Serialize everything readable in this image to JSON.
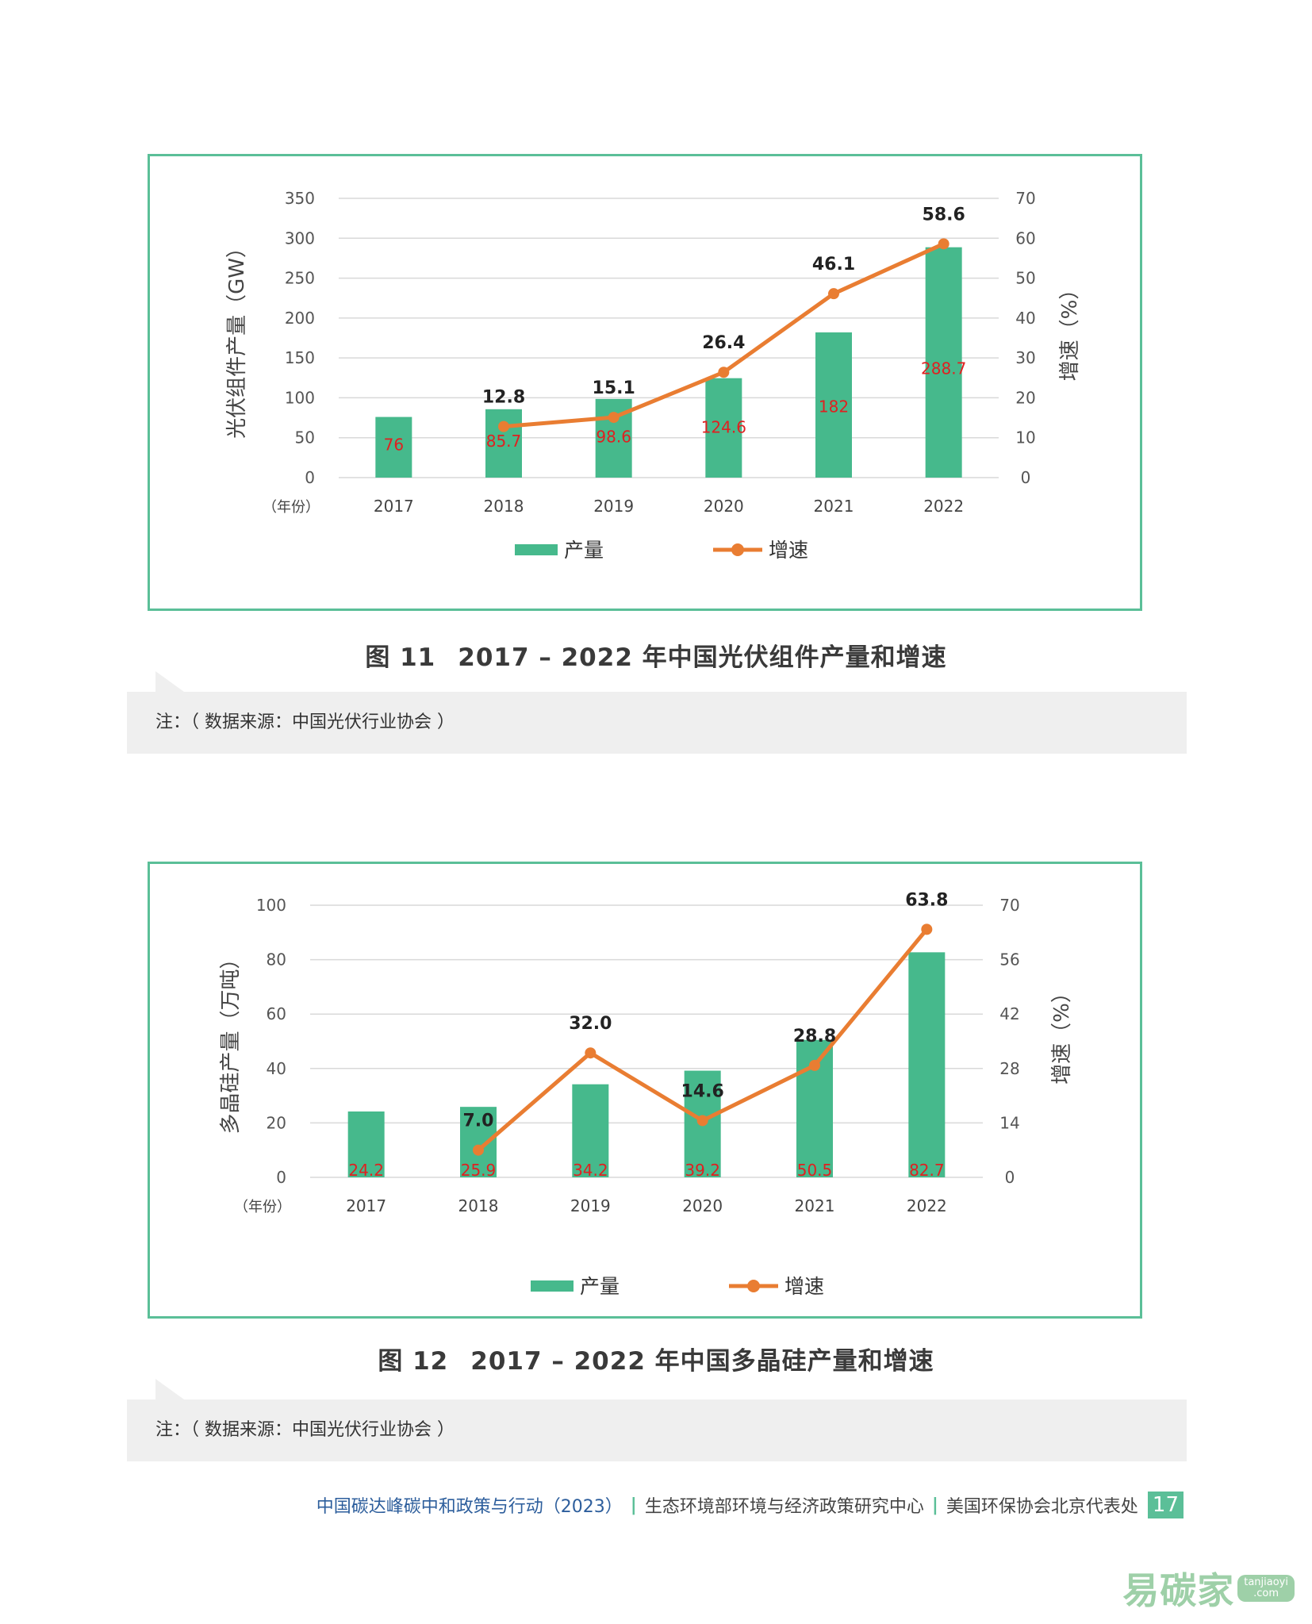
{
  "chart_data": [
    {
      "type": "bar",
      "categories": [
        "2017",
        "2018",
        "2019",
        "2020",
        "2021",
        "2022"
      ],
      "x_unit": "（年份）",
      "ylabel": "光伏组件产量（GW）",
      "y2label": "增速（%）",
      "ylim": [
        0,
        350
      ],
      "y2lim": [
        0,
        70
      ],
      "yticks": [
        0,
        50,
        100,
        150,
        200,
        250,
        300,
        350
      ],
      "y2ticks": [
        0,
        10,
        20,
        30,
        40,
        50,
        60,
        70
      ],
      "grid": true,
      "legend_position": "bottom",
      "series": [
        {
          "name": "产量",
          "kind": "bar",
          "axis": "left",
          "values": [
            76,
            85.7,
            98.6,
            124.6,
            182,
            288.7
          ],
          "labels": [
            "76",
            "85.7",
            "98.6",
            "124.6",
            "182",
            "288.7"
          ]
        },
        {
          "name": "增速",
          "kind": "line",
          "axis": "right",
          "values": [
            null,
            12.8,
            15.1,
            26.4,
            46.1,
            58.6
          ],
          "labels": [
            "",
            "12.8",
            "15.1",
            "26.4",
            "46.1",
            "58.6"
          ]
        }
      ],
      "colors": {
        "bar": "#46b98c",
        "line": "#e97d32",
        "bar_label": "#e02020",
        "line_label": "#222222"
      }
    },
    {
      "type": "bar",
      "categories": [
        "2017",
        "2018",
        "2019",
        "2020",
        "2021",
        "2022"
      ],
      "x_unit": "（年份）",
      "ylabel": "多晶硅产量（万吨）",
      "y2label": "增速（%）",
      "ylim": [
        0,
        100
      ],
      "y2lim": [
        0,
        70
      ],
      "yticks": [
        0,
        20,
        40,
        60,
        80,
        100
      ],
      "y2ticks": [
        0,
        14,
        28,
        42,
        56,
        70
      ],
      "grid": true,
      "legend_position": "bottom",
      "series": [
        {
          "name": "产量",
          "kind": "bar",
          "axis": "left",
          "values": [
            24.2,
            25.9,
            34.2,
            39.2,
            50.5,
            82.7
          ],
          "labels": [
            "24.2",
            "25.9",
            "34.2",
            "39.2",
            "50.5",
            "82.7"
          ]
        },
        {
          "name": "增速",
          "kind": "line",
          "axis": "right",
          "values": [
            null,
            7.0,
            32.0,
            14.6,
            28.8,
            63.8
          ],
          "labels": [
            "",
            "7.0",
            "32.0",
            "14.6",
            "28.8",
            "63.8"
          ]
        }
      ],
      "colors": {
        "bar": "#46b98c",
        "line": "#e97d32",
        "bar_label": "#e02020",
        "line_label": "#222222"
      }
    }
  ],
  "captions": [
    {
      "fig_no": "图 11",
      "text": "2017 – 2022 年中国光伏组件产量和增速"
    },
    {
      "fig_no": "图 12",
      "text": "2017 – 2022 年中国多晶硅产量和增速"
    }
  ],
  "notes": [
    "注：（ 数据来源：中国光伏行业协会 ）",
    "注：（ 数据来源：中国光伏行业协会 ）"
  ],
  "footer": {
    "report": "中国碳达峰碳中和政策与行动（2023）",
    "org1": "生态环境部环境与经济政策研究中心",
    "org2": "美国环保协会北京代表处",
    "separator": "|",
    "page": "17"
  },
  "watermark": {
    "text": "易碳家",
    "sub1": "tanjiaoyi",
    "sub2": ".com"
  }
}
